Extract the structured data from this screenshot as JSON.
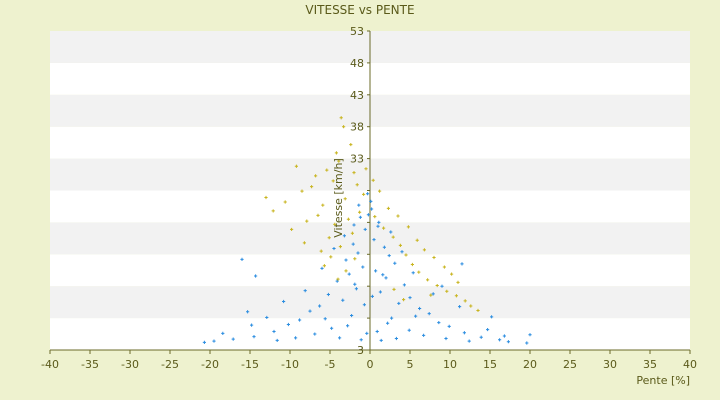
{
  "chart_data": {
    "type": "scatter",
    "title": "VITESSE vs PENTE",
    "xlabel": "Pente [%]",
    "ylabel": "Vitesse [km/h]",
    "xlim": [
      -40,
      40
    ],
    "ylim": [
      3,
      53
    ],
    "x_ticks": [
      -40,
      -35,
      -30,
      -25,
      -20,
      -15,
      -10,
      -5,
      0,
      5,
      10,
      15,
      20,
      25,
      30,
      35,
      40
    ],
    "y_ticks": [
      3,
      8,
      13,
      18,
      23,
      28,
      33,
      38,
      43,
      48,
      53
    ],
    "y_ticks_labeled": [
      53,
      48,
      43,
      38,
      33,
      3
    ],
    "grid": "horizontal alternating bands",
    "legend": "none",
    "colors": {
      "background": "#eef2cf",
      "plot_band_light": "#ffffff",
      "plot_band_dark": "#f2f2f2",
      "axis": "#6b6b2a",
      "series_blue": "#2b8de0",
      "series_yellow": "#c8b41e"
    },
    "series": [
      {
        "color": "#2b8de0",
        "marker": "plus",
        "points": [
          [
            -0.3,
            27.5
          ],
          [
            0.2,
            25.1
          ],
          [
            -1.2,
            23.8
          ],
          [
            1.0,
            22.4
          ],
          [
            -0.6,
            21.9
          ],
          [
            0.5,
            20.3
          ],
          [
            -2.1,
            19.6
          ],
          [
            1.8,
            19.1
          ],
          [
            -1.5,
            18.2
          ],
          [
            2.4,
            17.8
          ],
          [
            -3.0,
            17.1
          ],
          [
            3.1,
            16.6
          ],
          [
            -0.9,
            16.0
          ],
          [
            0.7,
            15.4
          ],
          [
            -2.6,
            14.9
          ],
          [
            2.0,
            14.3
          ],
          [
            -4.1,
            13.8
          ],
          [
            4.3,
            13.2
          ],
          [
            -1.7,
            12.6
          ],
          [
            1.3,
            12.1
          ],
          [
            -5.2,
            11.7
          ],
          [
            5.0,
            11.2
          ],
          [
            -3.4,
            10.8
          ],
          [
            3.6,
            10.3
          ],
          [
            -6.3,
            9.9
          ],
          [
            6.2,
            9.5
          ],
          [
            -7.5,
            9.1
          ],
          [
            7.4,
            8.7
          ],
          [
            -2.3,
            8.4
          ],
          [
            2.7,
            8.0
          ],
          [
            -8.8,
            7.7
          ],
          [
            8.6,
            7.3
          ],
          [
            -10.2,
            7.0
          ],
          [
            9.9,
            6.7
          ],
          [
            -4.8,
            6.4
          ],
          [
            4.9,
            6.1
          ],
          [
            -12.0,
            5.9
          ],
          [
            11.8,
            5.7
          ],
          [
            -6.9,
            5.5
          ],
          [
            6.7,
            5.3
          ],
          [
            -14.5,
            5.1
          ],
          [
            13.9,
            5.0
          ],
          [
            -9.3,
            4.9
          ],
          [
            9.5,
            4.8
          ],
          [
            -17.1,
            4.7
          ],
          [
            16.2,
            4.6
          ],
          [
            -11.6,
            4.5
          ],
          [
            12.4,
            4.4
          ],
          [
            -20.7,
            4.2
          ],
          [
            19.6,
            4.1
          ],
          [
            -1.1,
            4.6
          ],
          [
            1.4,
            4.5
          ],
          [
            -3.8,
            4.9
          ],
          [
            3.3,
            4.8
          ],
          [
            -0.4,
            5.6
          ],
          [
            0.9,
            5.9
          ],
          [
            -2.8,
            6.8
          ],
          [
            2.2,
            7.2
          ],
          [
            -5.6,
            7.9
          ],
          [
            5.7,
            8.3
          ],
          [
            -0.7,
            10.1
          ],
          [
            0.3,
            11.4
          ],
          [
            -1.9,
            13.3
          ],
          [
            1.6,
            14.8
          ],
          [
            -3.2,
            20.9
          ],
          [
            -16.0,
            17.2
          ],
          [
            -14.3,
            14.6
          ],
          [
            14.7,
            6.2
          ],
          [
            17.3,
            4.3
          ],
          [
            15.2,
            8.2
          ],
          [
            -18.4,
            5.6
          ],
          [
            -15.3,
            9.0
          ],
          [
            -8.1,
            12.3
          ],
          [
            7.9,
            11.8
          ],
          [
            -12.9,
            8.1
          ],
          [
            11.2,
            9.8
          ],
          [
            -10.8,
            10.6
          ],
          [
            9.0,
            13.0
          ],
          [
            -6.0,
            15.8
          ],
          [
            5.4,
            15.1
          ],
          [
            -4.5,
            18.9
          ],
          [
            4.0,
            18.4
          ],
          [
            -2.0,
            22.6
          ],
          [
            2.6,
            21.5
          ],
          [
            -0.2,
            24.2
          ],
          [
            0.1,
            26.3
          ],
          [
            -1.4,
            25.7
          ],
          [
            1.1,
            23.0
          ],
          [
            11.5,
            16.5
          ],
          [
            -14.8,
            6.9
          ],
          [
            16.8,
            5.2
          ],
          [
            -19.5,
            4.4
          ],
          [
            20.0,
            5.4
          ]
        ]
      },
      {
        "color": "#c8b41e",
        "marker": "plus",
        "points": [
          [
            -3.6,
            39.4
          ],
          [
            -3.3,
            38.0
          ],
          [
            -2.4,
            35.2
          ],
          [
            -4.2,
            33.9
          ],
          [
            -3.9,
            32.6
          ],
          [
            -9.2,
            31.8
          ],
          [
            -5.4,
            31.2
          ],
          [
            -6.8,
            30.3
          ],
          [
            -2.0,
            30.8
          ],
          [
            -4.6,
            29.5
          ],
          [
            -7.3,
            28.6
          ],
          [
            -8.5,
            27.9
          ],
          [
            -1.6,
            28.9
          ],
          [
            -13.0,
            26.9
          ],
          [
            -10.6,
            26.2
          ],
          [
            -5.9,
            25.7
          ],
          [
            -3.1,
            26.7
          ],
          [
            -12.1,
            24.8
          ],
          [
            -6.5,
            24.1
          ],
          [
            -7.9,
            23.2
          ],
          [
            -4.4,
            22.7
          ],
          [
            -9.8,
            21.9
          ],
          [
            -2.7,
            23.5
          ],
          [
            -5.1,
            20.6
          ],
          [
            -8.2,
            19.8
          ],
          [
            -3.7,
            19.2
          ],
          [
            -6.1,
            18.5
          ],
          [
            -4.9,
            17.6
          ],
          [
            -2.2,
            21.3
          ],
          [
            -1.3,
            24.6
          ],
          [
            -0.8,
            27.4
          ],
          [
            -5.7,
            16.2
          ],
          [
            -3.0,
            15.4
          ],
          [
            -4.0,
            14.1
          ],
          [
            -1.9,
            17.3
          ],
          [
            0.6,
            23.9
          ],
          [
            1.7,
            22.1
          ],
          [
            2.9,
            20.7
          ],
          [
            3.8,
            19.4
          ],
          [
            4.5,
            17.9
          ],
          [
            5.3,
            16.4
          ],
          [
            6.1,
            15.2
          ],
          [
            7.2,
            14.0
          ],
          [
            8.4,
            13.1
          ],
          [
            9.6,
            12.2
          ],
          [
            10.8,
            11.5
          ],
          [
            11.9,
            10.7
          ],
          [
            12.6,
            9.9
          ],
          [
            13.5,
            9.2
          ],
          [
            6.8,
            18.7
          ],
          [
            8.0,
            17.5
          ],
          [
            9.3,
            16.0
          ],
          [
            10.2,
            14.9
          ],
          [
            2.3,
            25.2
          ],
          [
            3.5,
            24.0
          ],
          [
            4.8,
            22.3
          ],
          [
            1.2,
            27.9
          ],
          [
            0.4,
            29.6
          ],
          [
            -0.5,
            31.4
          ],
          [
            5.9,
            20.2
          ],
          [
            7.6,
            11.6
          ],
          [
            11.0,
            13.6
          ],
          [
            3.0,
            12.5
          ],
          [
            4.2,
            10.9
          ]
        ]
      }
    ]
  }
}
